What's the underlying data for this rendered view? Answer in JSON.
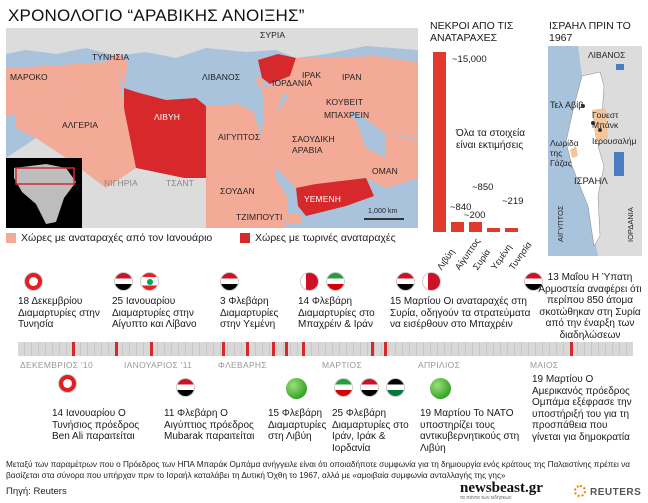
{
  "title": "ΧΡΟΝΟΛΟΓΙΟ “ΑΡΑΒΙΚΗΣ ΑΝΟΙΞΗΣ”",
  "colors": {
    "protest": "#f3ab97",
    "ongoing": "#d7282b",
    "sea": "#a9c3dd",
    "neutral": "#dcdcdc",
    "timeline": "#d3d3d3"
  },
  "map": {
    "countries": {
      "syria": "ΣΥΡΙΑ",
      "tunisia": "ΤΥΝΗΣΙΑ",
      "lebanon": "ΛΙΒΑΝΟΣ",
      "iraq": "ΙΡΑΚ",
      "iran": "ΙΡΑΝ",
      "morocco": "ΜΑΡΟΚΟ",
      "jordan": "ΙΟΡΔΑΝΙΑ",
      "kuwait": "ΚΟΥΒΕΙΤ",
      "bahrain": "ΜΠΑΧΡΕΙΝ",
      "algeria": "ΑΛΓΕΡΙΑ",
      "libya": "ΛΙΒΥΗ",
      "egypt": "ΑΙΓΥΠΤΟΣ",
      "saudi": "ΣΑΟΥΔΙΚΗ ΑΡΑΒΙΑ",
      "oman": "ΟΜΑΝ",
      "niger": "ΝΙΓΗΡΙΑ",
      "chad": "ΤΣΑΝΤ",
      "sudan": "ΣΟΥΔΑΝ",
      "yemen": "ΥΕΜΕΝΗ",
      "djibouti": "ΤΖΙΜΠΟΥΤΙ"
    },
    "scale": "1,000 km"
  },
  "legend": {
    "protest": "Χώρες με αναταραχές από τον Ιανουάριο",
    "ongoing": "Χώρες με τωρινές αναταραχές"
  },
  "deaths": {
    "title": "ΝΕΚΡΟΙ ΑΠΟ ΤΙΣ ΑΝΑΤΑΡΑΧΕΣ",
    "note": "Όλα τα στοιχεία είναι εκτιμήσεις",
    "chart_data": {
      "type": "bar",
      "categories": [
        "Λιβύη",
        "Αίγυπτος",
        "Συρία",
        "Υεμένη",
        "Τυνησία"
      ],
      "values": [
        15000,
        840,
        850,
        200,
        219
      ],
      "value_labels": [
        "~15,000",
        "~840",
        "~850",
        "~200",
        "~219"
      ],
      "title": "ΝΕΚΡΟΙ ΑΠΟ ΤΙΣ ΑΝΑΤΑΡΑΧΕΣ",
      "xlabel": "",
      "ylabel": ""
    }
  },
  "israel": {
    "title": "ΙΣΡΑΗΛ ΠΡΙΝ ΤΟ 1967",
    "labels": {
      "lebanon": "ΛΙΒΑΝΟΣ",
      "telaviv": "Τελ Αβίβ",
      "westbank": "Γουεστ Μπάνκ",
      "jerusalem": "Ιερουσαλήμ",
      "gaza": "Λωρίδα της Γάζας",
      "israel": "ΙΣΡΑΗΛ",
      "egypt": "ΑΙΓΥΠΤΟΣ",
      "jordan": "ΙΟΡΔΑΝΙΑ"
    }
  },
  "timeline": {
    "months": [
      "ΔΕΚΕΜΒΡΙΟΣ '10",
      "ΙΑΝΟΥΑΡΙΟΣ '11",
      "ΦΛΕΒΑΡΗΣ",
      "ΜΑΡΤΙΟΣ",
      "ΑΠΡΙΛΙΟΣ",
      "ΜΑΙΟΣ"
    ],
    "events_top": [
      "18 Δεκεμβρίου Διαμαρτυρίες στην Τυνησία",
      "25 Ιανουαρίου Διαμαρτυρίες στην Αίγυπτο και Λίβανο",
      "3 Φλεβάρη Διαμαρτυρίες στην Υεμένη",
      "14 Φλεβάρη Διαμαρτυρίες στο Μπαχρέιν & Ιράν",
      "15 Μαρτίου Οι αναταραχές στη Συρία, οδηγούν τα στρατεύματα να εισέρθουν στο Μπαχρέιν",
      "13 Μαΐου Η Ύπατη Αρμοστεία αναφέρει ότι περίπου 850 άτομα σκοτώθηκαν στη Συρία από την έναρξη των διαδηλώσεων"
    ],
    "events_bottom": [
      "14 Ιανουαρίου Ο Τυνήσιος πρόεδρος Ben Ali παραιτείται",
      "11 Φλεβάρη Ο Αιγύπτιος πρόεδρος Mubarak παραιτείται",
      "15 Φλεβάρη Διαμαρτυρίες στη Λιβύη",
      "25 Φλεβάρη Διαμαρτυρίες στο Ιράν, Ιράκ & Ιορδανία",
      "19 Μαρτίου Το ΝΑΤΟ υποστηρίζει τους αντικυβερνητικούς στη Λιβύη",
      "19 Μαρτίου Ο Αμερικανός πρόεδρος Ομπάμα εξέφρασε την υποστήριξή του για τη προσπάθεια που γίνεται για δημοκρατία"
    ]
  },
  "footnote": "Μεταξύ των παραμέτρων που ο Πρόεδρος των ΗΠΑ Μπαράκ Ομπάμα ανήγγειλε είναι ότι οποιαδήποτε συμφωνία για τη δημιουργία ενός κράτους της Παλαιστίνης πρέπει να βασίζεται στα σύνορα που υπήρχαν πριν το Ισραήλ καταλάβει τη Δυτική Όχθη το 1967, αλλά με «αμοιβαία συμφωνία ανταλλαγής της γης»",
  "source": "Πηγή: Reuters",
  "brand": {
    "name": "newsbeast.gr",
    "tagline": "τα πάντα των ειδήσεων",
    "partner": "REUTERS"
  }
}
